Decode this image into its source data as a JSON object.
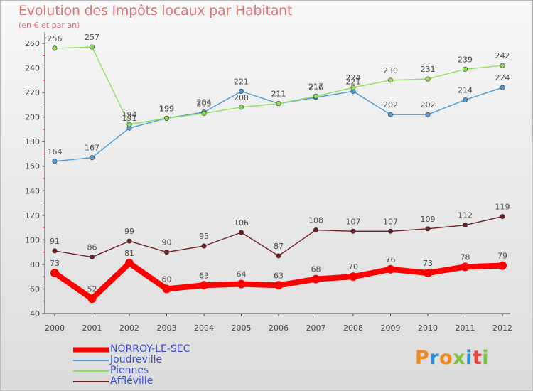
{
  "header": {
    "title": "Evolution des Impôts locaux par Habitant",
    "subtitle": "(en € et par an)"
  },
  "logo": {
    "text": "Proxiti",
    "colors": [
      "#f08a1c",
      "#2c8fd6",
      "#f08a1c",
      "#7cc242",
      "#2c8fd6",
      "#e8423a",
      "#7cc242"
    ]
  },
  "chart_data": {
    "type": "line",
    "title": "Evolution des Impôts locaux par Habitant",
    "subtitle": "(en € et par an)",
    "xlabel": "",
    "ylabel": "",
    "x": [
      "2000",
      "2001",
      "2002",
      "2003",
      "2004",
      "2005",
      "2006",
      "2007",
      "2008",
      "2009",
      "2010",
      "2011",
      "2012"
    ],
    "ylim": [
      40,
      260
    ],
    "yticks": [
      40,
      60,
      80,
      100,
      120,
      140,
      160,
      180,
      200,
      220,
      240,
      260
    ],
    "grid": false,
    "legend_position": "bottom-left",
    "series": [
      {
        "name": "NORROY-LE-SEC",
        "color": "#ff0000",
        "values": [
          73,
          52,
          81,
          60,
          63,
          64,
          63,
          68,
          70,
          76,
          73,
          78,
          79
        ],
        "labels": [
          "73",
          "52",
          "81",
          "60",
          "63",
          "64",
          "63",
          "68",
          "70",
          "76",
          "73",
          "78",
          "79"
        ]
      },
      {
        "name": "Joudreville",
        "color": "#4f9ad6",
        "values": [
          164,
          167,
          191,
          199,
          204,
          221,
          211,
          216,
          221,
          202,
          202,
          214,
          224
        ],
        "labels": [
          "164",
          "167",
          "191",
          "199",
          "204",
          "221",
          "211",
          "216",
          "221",
          "202",
          "202",
          "214",
          "224"
        ]
      },
      {
        "name": "Piennes",
        "color": "#8ee05a",
        "values": [
          256,
          257,
          194,
          199,
          203,
          208,
          211,
          217,
          224,
          230,
          231,
          239,
          242
        ],
        "labels": [
          "256",
          "257",
          "194",
          "199",
          "203",
          "208",
          "211",
          "217",
          "224",
          "230",
          "231",
          "239",
          "242"
        ]
      },
      {
        "name": "Affléville",
        "color": "#6e1f1f",
        "values": [
          91,
          86,
          99,
          90,
          95,
          106,
          87,
          108,
          107,
          107,
          109,
          112,
          119
        ],
        "labels": [
          "91",
          "86",
          "99",
          "90",
          "95",
          "106",
          "87",
          "108",
          "107",
          "107",
          "109",
          "112",
          "119"
        ]
      }
    ]
  }
}
